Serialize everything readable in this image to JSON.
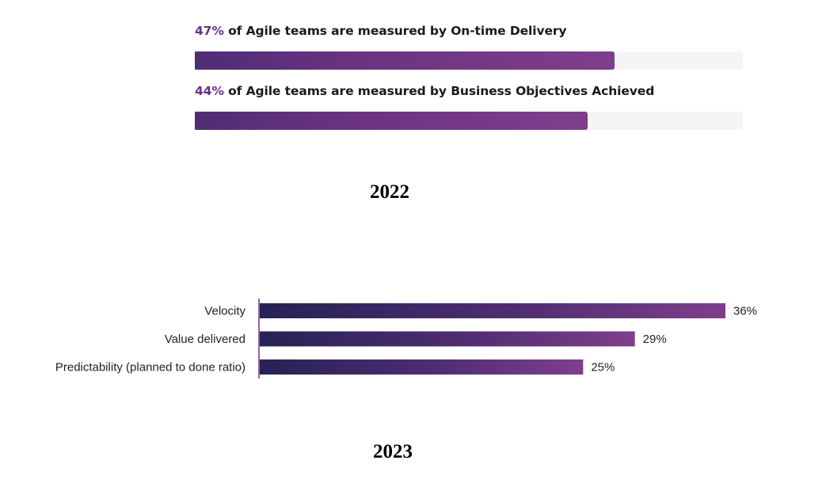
{
  "chart_data": [
    {
      "type": "bar",
      "title": "2022",
      "orientation": "horizontal",
      "xlim": [
        0,
        100
      ],
      "items": [
        {
          "percent_label": "47%",
          "text": "of Agile teams are measured by On-time Delivery",
          "value": 47
        },
        {
          "percent_label": "44%",
          "text": "of Agile teams are measured by Business Objectives Achieved",
          "value": 44
        }
      ]
    },
    {
      "type": "bar",
      "title": "2023",
      "orientation": "horizontal",
      "xlim": [
        0,
        36
      ],
      "categories": [
        "Velocity",
        "Value delivered",
        "Predictability (planned to done ratio)"
      ],
      "values": [
        36,
        29,
        25
      ],
      "data_labels": [
        "36%",
        "29%",
        "25%"
      ]
    }
  ],
  "colors": {
    "accent_purple": "#6e2f86",
    "bar_gradient_start_2023": "#262255",
    "bar_gradient_end_2023": "#7f3e8c",
    "track": "#f5f5f6"
  }
}
